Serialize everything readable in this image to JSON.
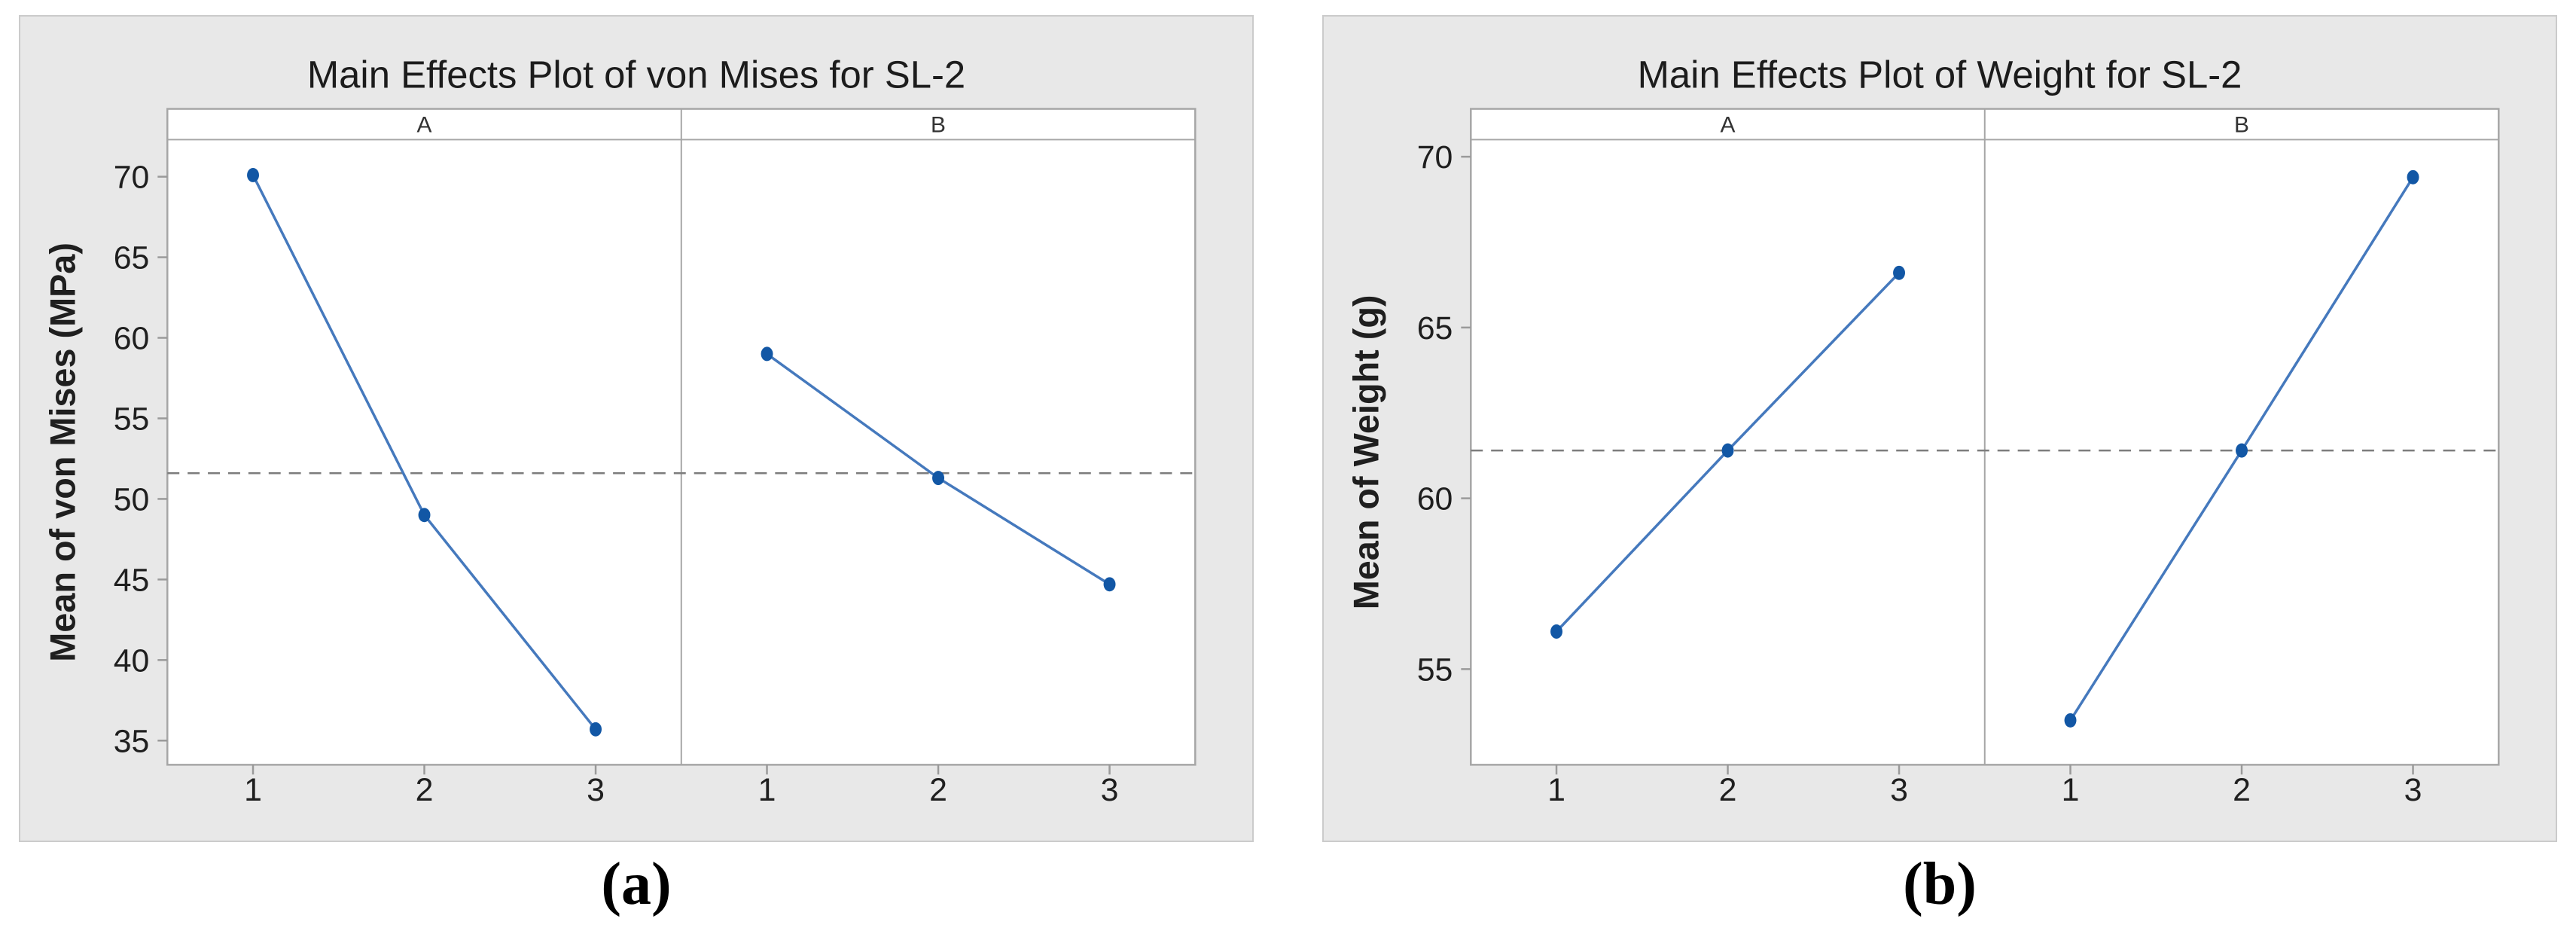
{
  "colors": {
    "page_background": "#ffffff",
    "card_background": "#e8e8e8",
    "card_border": "#cbcbcb",
    "plot_background": "#ffffff",
    "frame_border": "#a6a6a6",
    "panel_divider": "#a6a6a6",
    "series_line": "#4579bd",
    "marker_fill": "#1257a5",
    "mean_line": "#7d7d7d",
    "tick_mark": "#9a9a9a",
    "title_text": "#1c1c1c",
    "axis_text": "#1f1f1f",
    "header_text": "#333333",
    "caption_text": "#000000"
  },
  "chart_data": [
    {
      "type": "line",
      "title": "Main Effects Plot of von Mises for SL-2",
      "ylabel": "Mean of von Mises (MPa)",
      "xlabel": "",
      "caption": "(a)",
      "categories": [
        1,
        2,
        3
      ],
      "panels": [
        {
          "header": "A",
          "values": [
            70.1,
            49.0,
            35.7
          ]
        },
        {
          "header": "B",
          "values": [
            59.0,
            51.3,
            44.7
          ]
        }
      ],
      "grand_mean": 51.6,
      "yticks": [
        35,
        40,
        45,
        50,
        55,
        60,
        65,
        70
      ],
      "ylim": [
        33.5,
        72.3
      ],
      "xlim": [
        0.5,
        3.5
      ],
      "grid": false,
      "legend": "none",
      "mean_line_style": "dashed"
    },
    {
      "type": "line",
      "title": "Main Effects Plot of Weight for SL-2",
      "ylabel": "Mean of Weight (g)",
      "xlabel": "",
      "caption": "(b)",
      "categories": [
        1,
        2,
        3
      ],
      "panels": [
        {
          "header": "A",
          "values": [
            56.1,
            61.4,
            66.6
          ]
        },
        {
          "header": "B",
          "values": [
            53.5,
            61.4,
            69.4
          ]
        }
      ],
      "grand_mean": 61.4,
      "yticks": [
        55,
        60,
        65,
        70
      ],
      "ylim": [
        52.2,
        70.5
      ],
      "xlim": [
        0.5,
        3.5
      ],
      "grid": false,
      "legend": "none",
      "mean_line_style": "dashed"
    }
  ]
}
